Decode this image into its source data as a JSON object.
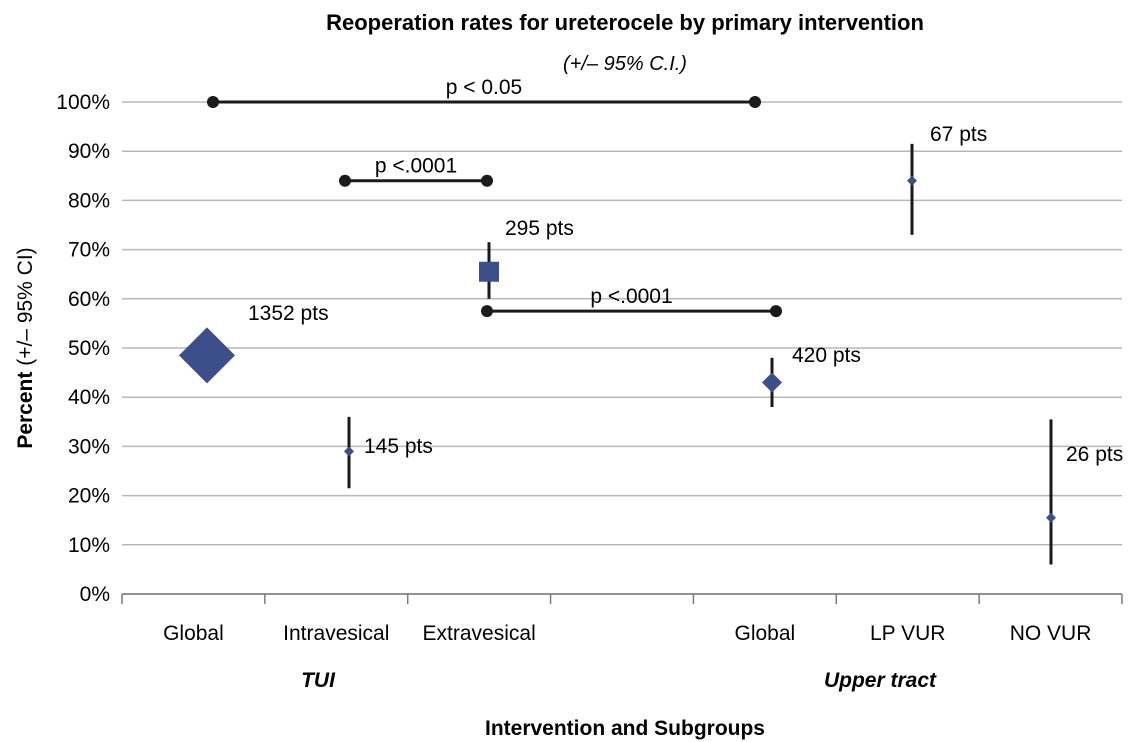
{
  "chart_data": {
    "type": "scatter",
    "title": "Reoperation rates for ureterocele by primary intervention",
    "subtitle": "(+/– 95% C.I.)",
    "xlabel": "Intervention and Subgroups",
    "ylabel_bold": "Percent",
    "ylabel_rest": " (+/– 95% CI)",
    "ylim": [
      0,
      100
    ],
    "yticks": [
      "0%",
      "10%",
      "20%",
      "30%",
      "40%",
      "50%",
      "60%",
      "70%",
      "80%",
      "90%",
      "100%"
    ],
    "grid": true,
    "categories": [
      "Global",
      "Intravesical",
      "Extravesical",
      "",
      "Global",
      "LP VUR",
      "NO VUR"
    ],
    "groups": [
      {
        "label": "TUI",
        "span": [
          0,
          2
        ]
      },
      {
        "label": "Upper tract",
        "span": [
          4,
          6
        ]
      }
    ],
    "points": [
      {
        "category": 0,
        "value": 48.5,
        "ci_low": null,
        "ci_high": null,
        "marker": "diamond",
        "size": "large",
        "label": "1352 pts"
      },
      {
        "category": 1,
        "value": 29,
        "ci_low": 21.5,
        "ci_high": 36,
        "marker": "diamond",
        "size": "small",
        "label": "145 pts"
      },
      {
        "category": 2,
        "value": 65.5,
        "ci_low": 60,
        "ci_high": 71.5,
        "marker": "square",
        "size": "medium",
        "label": "295 pts"
      },
      {
        "category": 4,
        "value": 43,
        "ci_low": 38,
        "ci_high": 48,
        "marker": "diamond",
        "size": "medium",
        "label": "420 pts"
      },
      {
        "category": 5,
        "value": 84,
        "ci_low": 73,
        "ci_high": 91.5,
        "marker": "diamond",
        "size": "small",
        "label": "67 pts"
      },
      {
        "category": 6,
        "value": 15.5,
        "ci_low": 6,
        "ci_high": 35.5,
        "marker": "diamond",
        "size": "small",
        "label": "26 pts"
      }
    ],
    "comparisons": [
      {
        "label": "p < 0.05",
        "y": 100,
        "from": 0,
        "to": 4
      },
      {
        "label": "p <.0001",
        "y": 84,
        "from": 1,
        "to": 2
      },
      {
        "label": "p <.0001",
        "y": 57.5,
        "from": 2,
        "to": 4
      }
    ],
    "colors": {
      "marker": "#3c4f8a",
      "line": "#1a1a1a",
      "grid": "#b8b8b8"
    }
  }
}
